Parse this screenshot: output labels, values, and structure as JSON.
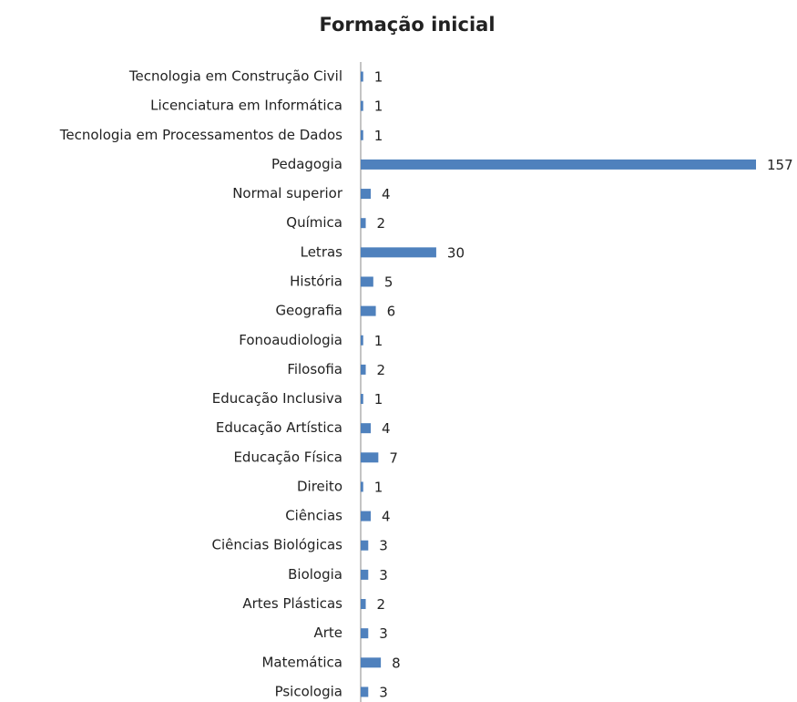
{
  "chart_data": {
    "type": "barh",
    "title": "Formação inicial",
    "categories": [
      "Tecnologia em Construção Civil",
      "Licenciatura em Informática",
      "Tecnologia em Processamentos de Dados",
      "Pedagogia",
      "Normal superior",
      "Química",
      "Letras",
      "História",
      "Geografia",
      "Fonoaudiologia",
      "Filosofia",
      "Educação Inclusiva",
      "Educação Artística",
      "Educação Física",
      "Direito",
      "Ciências",
      "Ciências Biológicas",
      "Biologia",
      "Artes Plásticas",
      "Arte",
      "Matemática",
      "Psicologia"
    ],
    "values": [
      1,
      1,
      1,
      157,
      4,
      2,
      30,
      5,
      6,
      1,
      2,
      1,
      4,
      7,
      1,
      4,
      3,
      3,
      2,
      3,
      8,
      3
    ],
    "color": "#4f81bd",
    "xlim": [
      0,
      157
    ]
  }
}
